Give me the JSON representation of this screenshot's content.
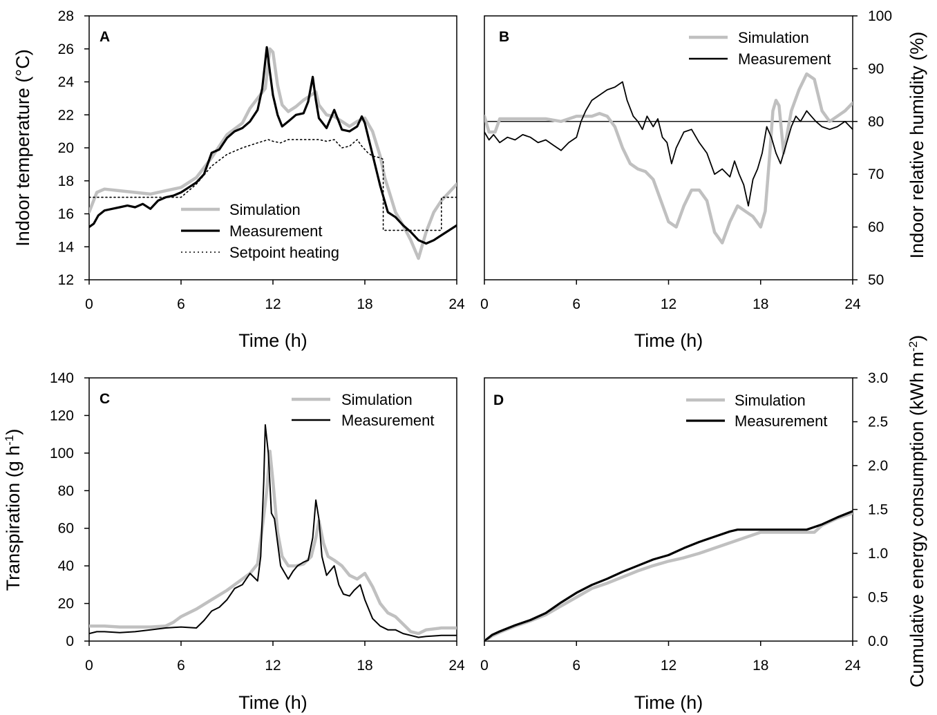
{
  "colors": {
    "simulation": "#c0c0c0",
    "measurement": "#000000",
    "setpoint": "#000000",
    "axes": "#000000"
  },
  "chart_data": [
    {
      "panel": "A",
      "type": "line",
      "panel_label": "A",
      "xlabel": "Time (h)",
      "ylabel": "Indoor temperature (°C)",
      "xlim": [
        0,
        24
      ],
      "ylim": [
        12,
        28
      ],
      "xticks": [
        "0",
        "6",
        "12",
        "18",
        "24"
      ],
      "yticks": [
        "12",
        "14",
        "16",
        "18",
        "20",
        "22",
        "24",
        "26",
        "28"
      ],
      "legend_position": "bottom-center",
      "series": [
        {
          "name": "Simulation",
          "style": "sim",
          "x": [
            0,
            0.5,
            1,
            2,
            3,
            4,
            5,
            6,
            7,
            8,
            9,
            10,
            10.5,
            11,
            11.5,
            11.8,
            12,
            12.3,
            12.6,
            13,
            13.5,
            14,
            14.5,
            14.8,
            15,
            15.5,
            16,
            16.5,
            17,
            17.5,
            18,
            18.5,
            19,
            19.3,
            19.7,
            20,
            20.5,
            21,
            21.5,
            22,
            22.5,
            23,
            23.5,
            24
          ],
          "y": [
            16.1,
            17.3,
            17.5,
            17.4,
            17.3,
            17.2,
            17.4,
            17.6,
            18.2,
            19.4,
            20.8,
            21.5,
            22.4,
            23.0,
            23.6,
            26.0,
            25.8,
            23.8,
            22.6,
            22.2,
            22.5,
            22.9,
            23.2,
            23.4,
            22.6,
            22.0,
            21.9,
            21.6,
            21.3,
            21.6,
            21.8,
            21.0,
            19.5,
            18.2,
            17.0,
            16.1,
            15.3,
            14.4,
            13.3,
            14.9,
            16.1,
            16.8,
            17.3,
            17.8
          ]
        },
        {
          "name": "Measurement",
          "style": "meas",
          "x": [
            0,
            0.3,
            0.6,
            1,
            1.5,
            2,
            2.5,
            3,
            3.5,
            4,
            4.5,
            5,
            5.5,
            6,
            6.5,
            7,
            7.5,
            8,
            8.5,
            9,
            9.5,
            10,
            10.5,
            11,
            11.3,
            11.6,
            11.8,
            12,
            12.3,
            12.6,
            13,
            13.5,
            14,
            14.3,
            14.6,
            14.8,
            15,
            15.5,
            16,
            16.5,
            17,
            17.5,
            17.8,
            18,
            18.5,
            19,
            19.5,
            20,
            20.5,
            21,
            21.5,
            22,
            22.5,
            23,
            23.5,
            24
          ],
          "y": [
            15.2,
            15.4,
            15.9,
            16.2,
            16.3,
            16.4,
            16.5,
            16.4,
            16.6,
            16.3,
            16.8,
            17.0,
            17.1,
            17.3,
            17.6,
            17.9,
            18.4,
            19.7,
            19.9,
            20.6,
            21.0,
            21.2,
            21.6,
            22.3,
            23.6,
            26.1,
            24.6,
            23.2,
            22.0,
            21.3,
            21.6,
            22.0,
            22.1,
            22.8,
            24.3,
            22.9,
            21.8,
            21.2,
            22.3,
            21.1,
            21.0,
            21.3,
            21.9,
            21.5,
            19.6,
            17.7,
            16.1,
            15.8,
            15.3,
            14.9,
            14.4,
            14.2,
            14.4,
            14.7,
            15.0,
            15.3
          ]
        },
        {
          "name": "Setpoint heating",
          "style": "set",
          "x": [
            0,
            0.2,
            0.2,
            6,
            7,
            8,
            9,
            10,
            11,
            11.7,
            12,
            12.5,
            13,
            14,
            15,
            15.5,
            16,
            16.5,
            17,
            17.5,
            17.8,
            18.2,
            18.5,
            19,
            19.2,
            19.2,
            23,
            23,
            24
          ],
          "y": [
            17.0,
            17.0,
            17.0,
            17.0,
            17.8,
            18.9,
            19.6,
            20.0,
            20.3,
            20.5,
            20.4,
            20.3,
            20.5,
            20.5,
            20.5,
            20.4,
            20.5,
            20.0,
            20.1,
            20.5,
            20.1,
            19.7,
            19.5,
            19.4,
            19.3,
            15.0,
            15.0,
            17.0,
            17.0
          ]
        }
      ]
    },
    {
      "panel": "B",
      "type": "line",
      "panel_label": "B",
      "xlabel": "Time (h)",
      "ylabel": "Indoor relative humidity (%)",
      "yaxis_side": "right",
      "xlim": [
        0,
        24
      ],
      "ylim": [
        50,
        100
      ],
      "xticks": [
        "0",
        "6",
        "12",
        "18",
        "24"
      ],
      "yticks": [
        "50",
        "60",
        "70",
        "80",
        "90",
        "100"
      ],
      "reference_line_y": 80,
      "legend_position": "top-right",
      "series": [
        {
          "name": "Simulation",
          "style": "sim",
          "x": [
            0,
            0.3,
            0.7,
            1,
            2,
            3,
            4,
            5,
            5.5,
            6,
            7,
            7.5,
            8,
            8.5,
            9,
            9.5,
            10,
            10.5,
            11,
            11.5,
            12,
            12.5,
            13,
            13.5,
            14,
            14.5,
            15,
            15.5,
            16,
            16.5,
            17,
            17.5,
            18,
            18.3,
            18.6,
            18.8,
            19,
            19.2,
            19.5,
            20,
            20.5,
            21,
            21.5,
            22,
            22.5,
            23,
            23.5,
            24
          ],
          "y": [
            81,
            78,
            78,
            80.5,
            80.5,
            80.5,
            80.5,
            80,
            80.5,
            81,
            81,
            81.5,
            81,
            79,
            75,
            72,
            71,
            70.5,
            69,
            65,
            61,
            60,
            64,
            67,
            67,
            65,
            59,
            57,
            61,
            64,
            63,
            62,
            60,
            63,
            74,
            82,
            84,
            83,
            74,
            82,
            86,
            89,
            88,
            82,
            80,
            81,
            82,
            83.5
          ]
        },
        {
          "name": "Measurement",
          "style": "meas",
          "x": [
            0,
            0.3,
            0.6,
            1,
            1.5,
            2,
            2.5,
            3,
            3.5,
            4,
            4.5,
            5,
            5.5,
            6,
            6.3,
            6.6,
            7,
            7.5,
            8,
            8.5,
            9,
            9.3,
            9.7,
            10,
            10.3,
            10.6,
            11,
            11.3,
            11.6,
            11.9,
            12.2,
            12.5,
            13,
            13.5,
            14,
            14.5,
            15,
            15.5,
            16,
            16.3,
            16.6,
            16.9,
            17.2,
            17.5,
            17.8,
            18.1,
            18.4,
            18.7,
            19,
            19.3,
            19.6,
            20,
            20.3,
            20.6,
            21,
            21.3,
            21.6,
            22,
            22.5,
            23,
            23.5,
            24
          ],
          "y": [
            78,
            76.5,
            77.5,
            76,
            77,
            76.5,
            77.5,
            77,
            76,
            76.5,
            75.5,
            74.5,
            76,
            77,
            80,
            82,
            84,
            85,
            86,
            86.5,
            87.5,
            84,
            81,
            80,
            78.5,
            81,
            79,
            80.5,
            77,
            76,
            72,
            75,
            78,
            78.5,
            76,
            74,
            70,
            71,
            69.5,
            72.5,
            70,
            68,
            64,
            69,
            71,
            74,
            79,
            77,
            74,
            72,
            75,
            79,
            81,
            80,
            82,
            81,
            80,
            79,
            78.5,
            79,
            80,
            78.5
          ]
        }
      ]
    },
    {
      "panel": "C",
      "type": "line",
      "panel_label": "C",
      "xlabel": "Time (h)",
      "ylabel": "Transpiration (g h",
      "ylabel_sup": "-1",
      "ylabel_close": ")",
      "xlim": [
        0,
        24
      ],
      "ylim": [
        0,
        140
      ],
      "xticks": [
        "0",
        "6",
        "12",
        "18",
        "24"
      ],
      "yticks": [
        "0",
        "20",
        "40",
        "60",
        "80",
        "100",
        "120",
        "140"
      ],
      "legend_position": "top-right",
      "series": [
        {
          "name": "Simulation",
          "style": "sim",
          "x": [
            0,
            1,
            2,
            3,
            4,
            5,
            5.5,
            6,
            7,
            8,
            9,
            10,
            10.5,
            11,
            11.3,
            11.6,
            11.8,
            12,
            12.3,
            12.6,
            13,
            13.5,
            14,
            14.5,
            14.8,
            15,
            15.3,
            15.6,
            16,
            16.5,
            17,
            17.5,
            18,
            18.5,
            19,
            19.5,
            20,
            20.5,
            21,
            21.5,
            22,
            23,
            24
          ],
          "y": [
            8,
            8,
            7.5,
            7.5,
            7.5,
            8,
            10,
            13,
            17,
            22,
            27,
            33,
            36,
            41,
            60,
            80,
            101,
            85,
            58,
            45,
            40,
            40,
            41,
            45,
            55,
            64,
            52,
            45,
            43,
            40,
            35,
            33,
            36,
            29,
            20,
            15,
            13,
            9,
            5,
            4,
            6,
            7,
            7
          ]
        },
        {
          "name": "Measurement",
          "style": "meas",
          "x": [
            0,
            0.5,
            1,
            2,
            3,
            4,
            5,
            6,
            7,
            7.5,
            8,
            8.5,
            9,
            9.5,
            10,
            10.5,
            11,
            11.2,
            11.4,
            11.5,
            11.7,
            11.9,
            12.1,
            12.5,
            13,
            13.3,
            13.6,
            14,
            14.3,
            14.6,
            14.8,
            15,
            15.2,
            15.5,
            15.8,
            16,
            16.3,
            16.6,
            17,
            17.3,
            17.7,
            18,
            18.5,
            19,
            19.5,
            20,
            20.5,
            21,
            21.5,
            22,
            23,
            24
          ],
          "y": [
            4,
            5,
            5,
            4.5,
            5,
            6,
            7,
            7.5,
            7,
            11,
            16,
            18,
            22,
            28,
            30,
            36,
            32,
            45,
            85,
            115,
            100,
            68,
            65,
            40,
            33,
            37,
            40,
            42,
            43,
            55,
            75,
            65,
            45,
            35,
            38,
            40,
            30,
            25,
            24,
            27,
            30,
            22,
            12,
            8,
            6,
            6,
            4,
            3,
            2,
            2.5,
            3,
            3
          ]
        }
      ]
    },
    {
      "panel": "D",
      "type": "line",
      "panel_label": "D",
      "xlabel": "Time (h)",
      "ylabel": "Cumulative energy consumption (kWh m",
      "ylabel_sup": "-2",
      "ylabel_close": ")",
      "yaxis_side": "right",
      "xlim": [
        0,
        24
      ],
      "ylim": [
        0,
        3
      ],
      "xticks": [
        "0",
        "6",
        "12",
        "18",
        "24"
      ],
      "yticks": [
        "0.0",
        "0.5",
        "1.0",
        "1.5",
        "2.0",
        "2.5",
        "3.0"
      ],
      "legend_position": "top-right",
      "series": [
        {
          "name": "Simulation",
          "style": "sim",
          "x": [
            0,
            0.5,
            1,
            2,
            3,
            4,
            5,
            6,
            7,
            8,
            9,
            10,
            11,
            12,
            13,
            14,
            15,
            16,
            17,
            18,
            19,
            20,
            21,
            21.5,
            22,
            23,
            24
          ],
          "y": [
            0,
            0.06,
            0.1,
            0.17,
            0.23,
            0.3,
            0.4,
            0.5,
            0.6,
            0.66,
            0.73,
            0.8,
            0.86,
            0.91,
            0.95,
            1.0,
            1.06,
            1.12,
            1.18,
            1.24,
            1.24,
            1.24,
            1.24,
            1.24,
            1.32,
            1.4,
            1.46
          ]
        },
        {
          "name": "Measurement",
          "style": "meas",
          "x": [
            0,
            0.5,
            1,
            2,
            3,
            4,
            5,
            6,
            7,
            8,
            9,
            10,
            11,
            12,
            13,
            14,
            15,
            16,
            16.5,
            17,
            18,
            19,
            20,
            21,
            22,
            23,
            24
          ],
          "y": [
            0,
            0.07,
            0.11,
            0.18,
            0.24,
            0.32,
            0.44,
            0.55,
            0.64,
            0.71,
            0.79,
            0.86,
            0.93,
            0.98,
            1.06,
            1.13,
            1.19,
            1.25,
            1.27,
            1.27,
            1.27,
            1.27,
            1.27,
            1.27,
            1.33,
            1.41,
            1.48
          ]
        }
      ]
    }
  ]
}
